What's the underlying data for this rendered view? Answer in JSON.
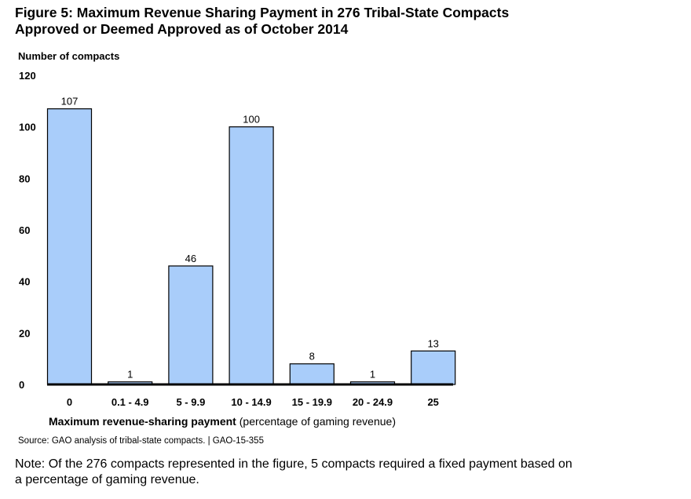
{
  "figure": {
    "title_line1": "Figure 5: Maximum Revenue Sharing Payment in 276 Tribal-State Compacts",
    "title_line2": "Approved or Deemed Approved as of October 2014",
    "source": "Source: GAO analysis of tribal-state compacts.  |  GAO-15-355",
    "note_line1": "Note: Of the 276 compacts represented in the figure, 5 compacts required a fixed payment based on",
    "note_line2": "a percentage of gaming revenue."
  },
  "colors": {
    "bar_fill": "#a9cdfa",
    "bar_stroke": "#000000",
    "axis": "#000000"
  },
  "chart_data": {
    "type": "bar",
    "title": "Figure 5: Maximum Revenue Sharing Payment in 276 Tribal-State Compacts Approved or Deemed Approved as of October 2014",
    "ylabel": "Number of compacts",
    "xlabel_bold": "Maximum revenue-sharing payment",
    "xlabel_rest": " (percentage of gaming revenue)",
    "categories": [
      "0",
      "0.1 - 4.9",
      "5 - 9.9",
      "10 - 14.9",
      "15 - 19.9",
      "20 - 24.9",
      "25"
    ],
    "values": [
      107,
      1,
      46,
      100,
      8,
      1,
      13
    ],
    "ylim": [
      0,
      120
    ],
    "yticks": [
      0,
      20,
      40,
      60,
      80,
      100,
      120
    ],
    "grid": false,
    "legend": "none"
  }
}
